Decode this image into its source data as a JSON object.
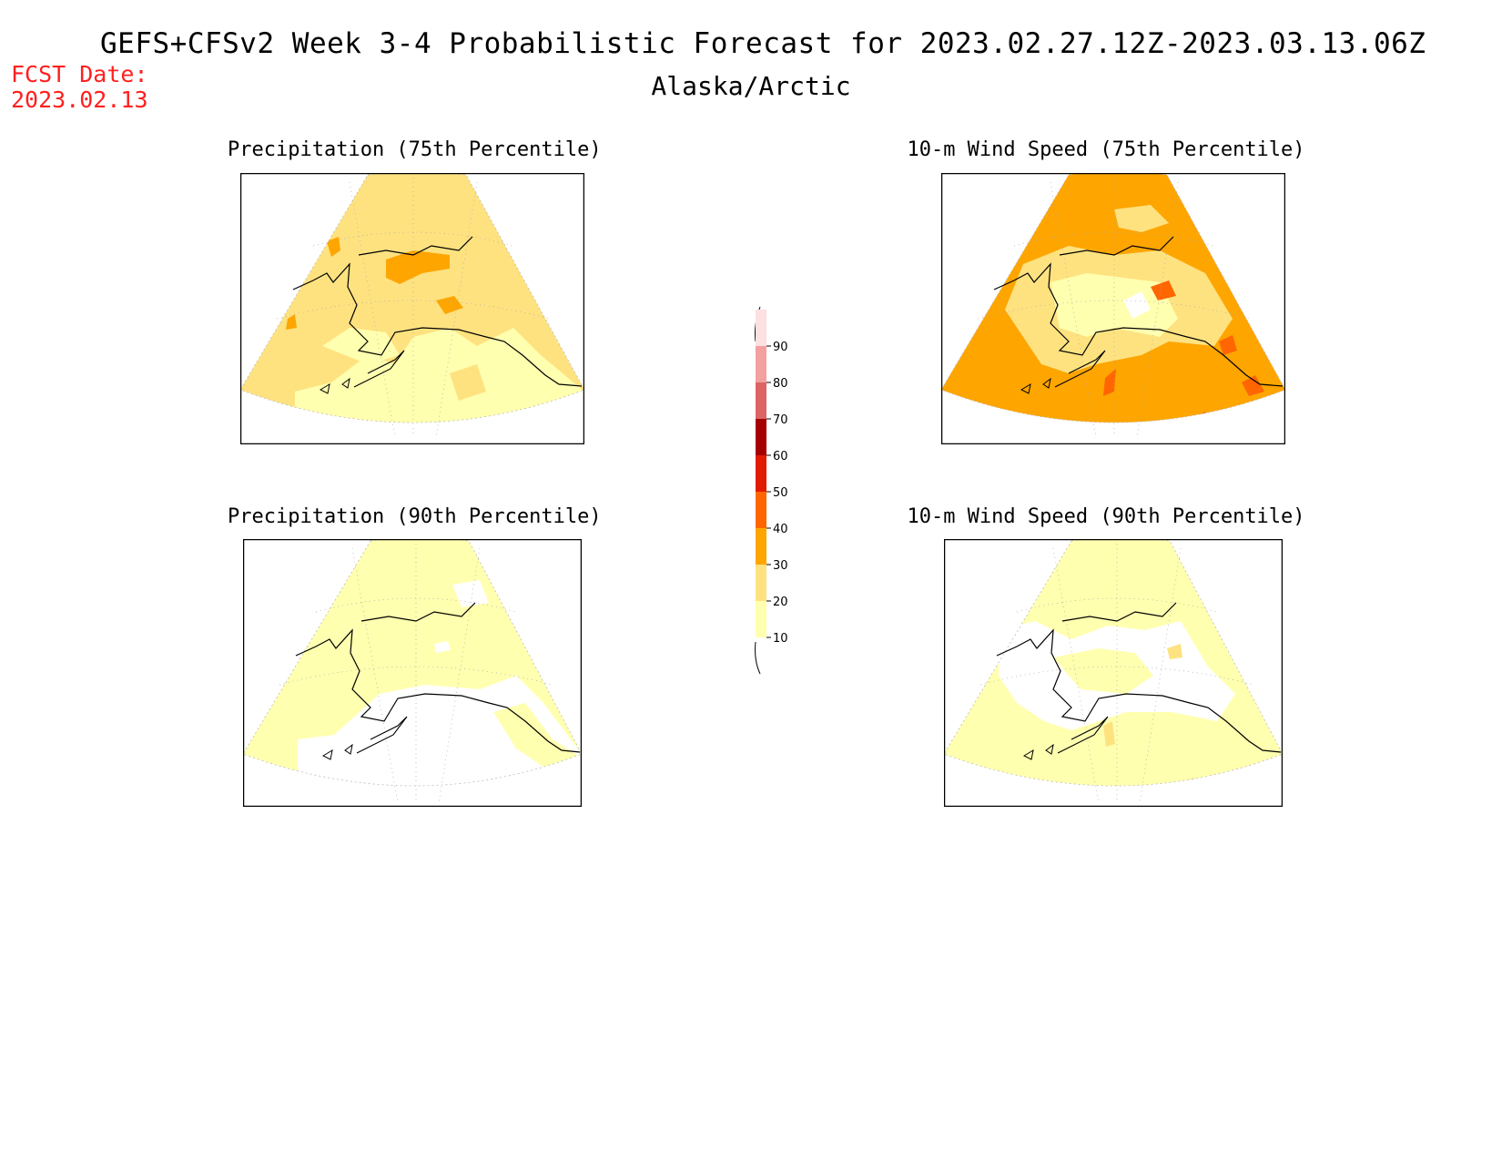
{
  "header": {
    "title": "GEFS+CFSv2 Week 3-4 Probabilistic Forecast for 2023.02.27.12Z-2023.03.13.06Z",
    "region": "Alaska/Arctic",
    "fcst_label": "FCST Date:",
    "fcst_date": "2023.02.13"
  },
  "panels": [
    {
      "title": "Precipitation (75th Percentile)"
    },
    {
      "title": "10-m Wind Speed (75th Percentile)"
    },
    {
      "title": "Precipitation (90th Percentile)"
    },
    {
      "title": "10-m Wind Speed (90th Percentile)"
    }
  ],
  "colorbar": {
    "levels": [
      "10",
      "20",
      "30",
      "40",
      "50",
      "60",
      "70",
      "80",
      "90"
    ],
    "colors": {
      "lt10": "#ffffff",
      "10-20": "#ffffb0",
      "20-30": "#fee280",
      "30-40": "#fea500",
      "40-50": "#ff6600",
      "50-60": "#e11b00",
      "60-70": "#a50000",
      "70-80": "#dc6464",
      "80-90": "#f2a0a0",
      "gt90": "#fde0e0"
    }
  }
}
